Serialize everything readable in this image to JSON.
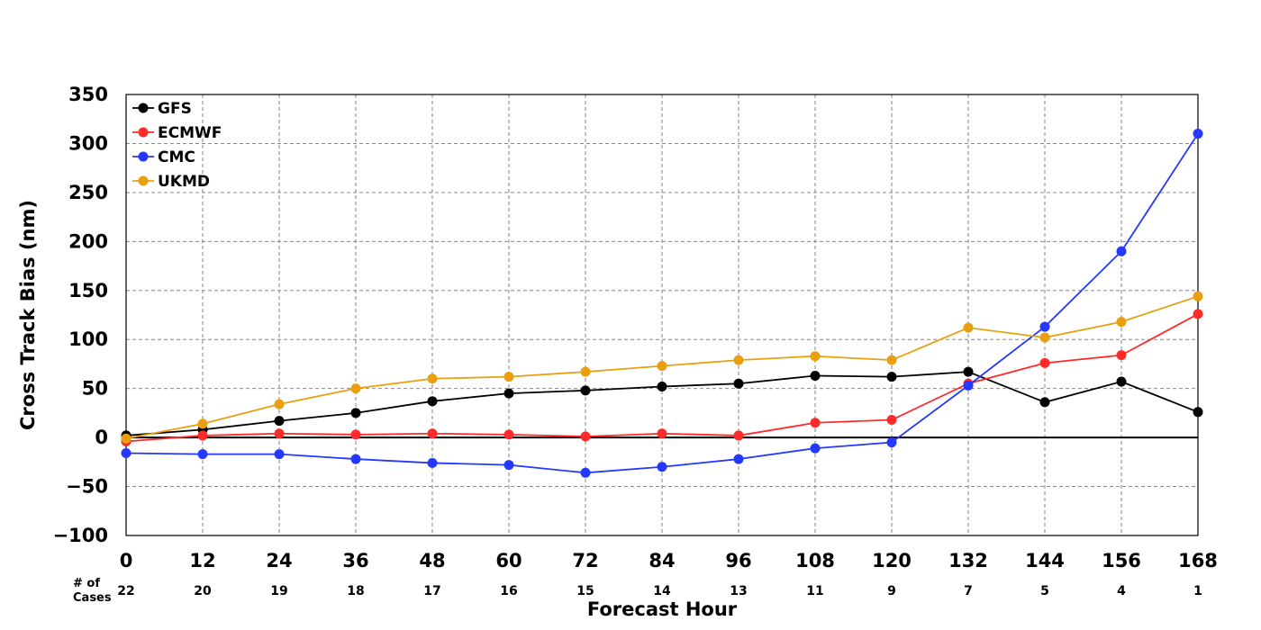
{
  "chart_data": {
    "type": "line",
    "xlabel": "Forecast Hour",
    "ylabel": "Cross Track Bias (nm)",
    "x": [
      0,
      12,
      24,
      36,
      48,
      60,
      72,
      84,
      96,
      108,
      120,
      132,
      144,
      156,
      168
    ],
    "xlim": [
      0,
      168
    ],
    "ylim": [
      -100,
      350
    ],
    "yticks": [
      -100,
      -50,
      0,
      50,
      100,
      150,
      200,
      250,
      300,
      350
    ],
    "ytick_labels": [
      "−100",
      "−50",
      "0",
      "50",
      "100",
      "150",
      "200",
      "250",
      "300",
      "350"
    ],
    "grid": true,
    "legend_position": "top-left",
    "cases_header_line1": "# of",
    "cases_header_line2": "Cases",
    "cases": [
      22,
      20,
      19,
      18,
      17,
      16,
      15,
      14,
      13,
      11,
      9,
      7,
      5,
      4,
      1
    ],
    "series": [
      {
        "name": "GFS",
        "color": "#000000",
        "values": [
          2,
          8,
          17,
          25,
          37,
          45,
          48,
          52,
          55,
          63,
          62,
          67,
          36,
          57,
          26
        ]
      },
      {
        "name": "ECMWF",
        "color": "#ff2a2a",
        "values": [
          -4,
          2,
          4,
          3,
          4,
          3,
          1,
          4,
          2,
          15,
          18,
          55,
          76,
          84,
          126
        ]
      },
      {
        "name": "CMC",
        "color": "#2438ff",
        "values": [
          -16,
          -17,
          -17,
          -22,
          -26,
          -28,
          -36,
          -30,
          -22,
          -11,
          -5,
          53,
          113,
          190,
          310
        ]
      },
      {
        "name": "UKMD",
        "color": "#e8a010",
        "values": [
          -1,
          14,
          34,
          50,
          60,
          62,
          67,
          73,
          79,
          83,
          79,
          112,
          102,
          118,
          144
        ]
      }
    ]
  }
}
